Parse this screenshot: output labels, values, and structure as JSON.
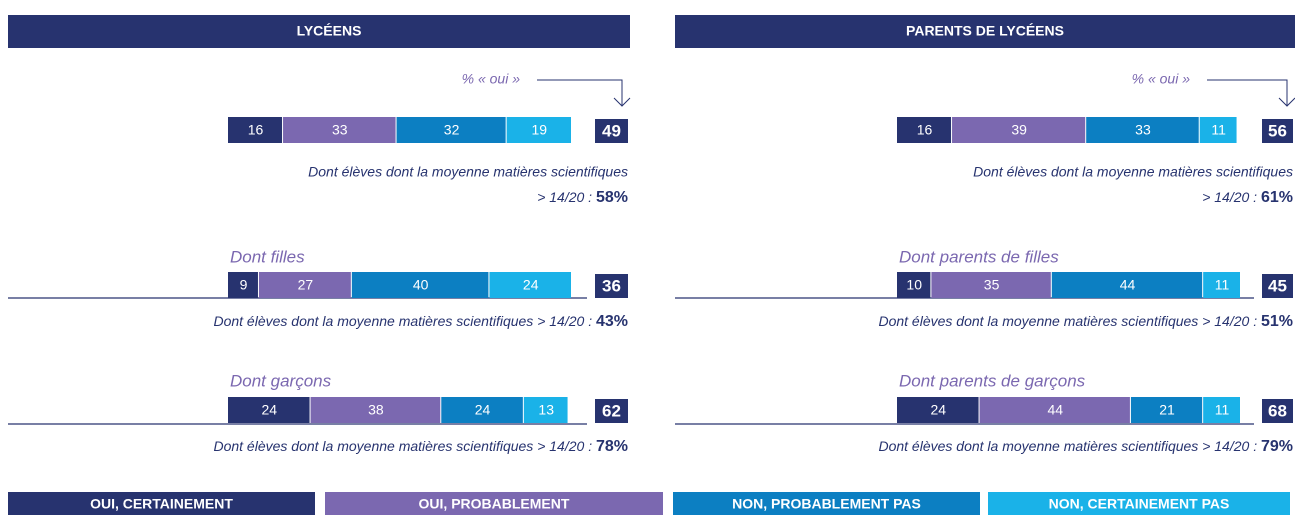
{
  "legend": [
    {
      "name": "OUI, CERTAINEMENT",
      "color": "#27336f"
    },
    {
      "name": "OUI, PROBABLEMENT",
      "color": "#7b68b0"
    },
    {
      "name": "NON, PROBABLEMENT PAS",
      "color": "#0c7fc2"
    },
    {
      "name": "NON, CERTAINEMENT PAS",
      "color": "#1ab2e8"
    }
  ],
  "chart_data": [
    {
      "type": "stacked_bar",
      "title": "LYCÉENS",
      "annotation": "% « oui »",
      "xlim": [
        0,
        100
      ],
      "rows": [
        {
          "label": null,
          "values": [
            16,
            33,
            32,
            19
          ],
          "total": 49,
          "note": "Dont élèves dont la moyenne matières scientifiques",
          "note2": "> 14/20 :",
          "note_value": 58,
          "note_value_label": "58%"
        },
        {
          "label": "Dont filles",
          "values": [
            9,
            27,
            40,
            24
          ],
          "total": 36,
          "note": "Dont élèves dont la moyenne matières scientifiques > 14/20 :",
          "note_value": 43,
          "note_value_label": "43%"
        },
        {
          "label": "Dont garçons",
          "values": [
            24,
            38,
            24,
            13
          ],
          "total": 62,
          "note": "Dont élèves dont la moyenne matières scientifiques > 14/20 :",
          "note_value": 78,
          "note_value_label": "78%"
        }
      ]
    },
    {
      "type": "stacked_bar",
      "title": "PARENTS DE LYCÉENS",
      "annotation": "% « oui »",
      "xlim": [
        0,
        100
      ],
      "rows": [
        {
          "label": null,
          "values": [
            16,
            39,
            33,
            11
          ],
          "total": 56,
          "note": "Dont élèves dont la moyenne matières scientifiques",
          "note2": "> 14/20 :",
          "note_value": 61,
          "note_value_label": "61%"
        },
        {
          "label": "Dont parents de filles",
          "values": [
            10,
            35,
            44,
            11
          ],
          "total": 45,
          "note": "Dont élèves dont la moyenne matières scientifiques > 14/20 :",
          "note_value": 51,
          "note_value_label": "51%"
        },
        {
          "label": "Dont parents de garçons",
          "values": [
            24,
            44,
            21,
            11
          ],
          "total": 68,
          "note": "Dont élèves dont la moyenne matières scientifiques > 14/20 :",
          "note_value": 79,
          "note_value_label": "79%"
        }
      ]
    }
  ]
}
